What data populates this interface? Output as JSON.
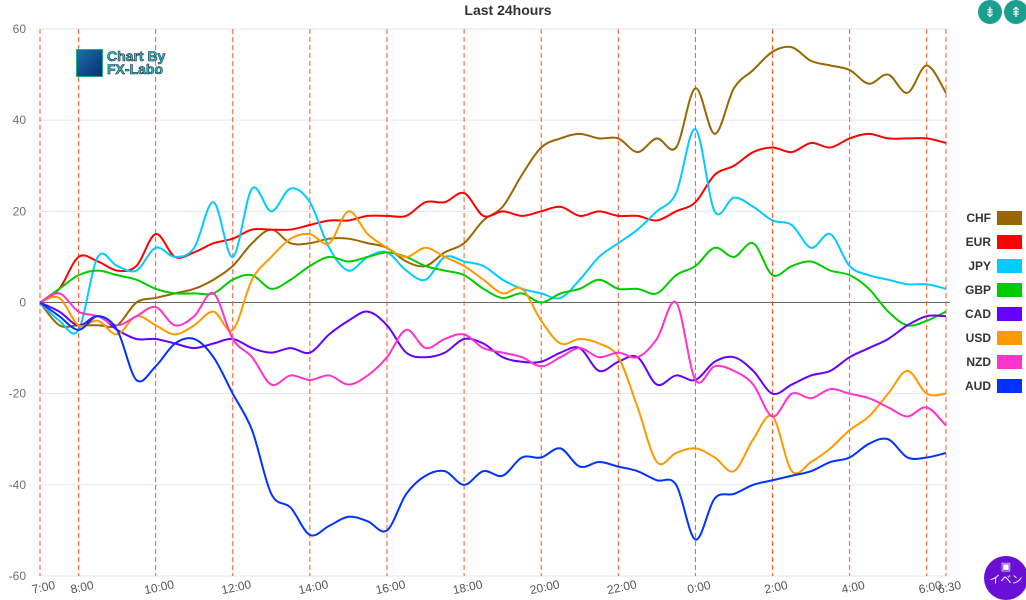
{
  "chart_data": {
    "type": "line",
    "title": "Last 24hours",
    "xlabel": "",
    "ylabel": "",
    "ylim": [
      -60,
      60
    ],
    "yticks": [
      60,
      40,
      20,
      0,
      -20,
      -40,
      -60
    ],
    "x_hours_from_start": [
      0,
      0.5,
      1,
      1.5,
      2,
      2.5,
      3,
      3.5,
      4,
      4.5,
      5,
      5.5,
      6,
      6.5,
      7,
      7.5,
      8,
      8.5,
      9,
      9.5,
      10,
      10.5,
      11,
      11.5,
      12,
      12.5,
      13,
      13.5,
      14,
      14.5,
      15,
      15.5,
      16,
      16.5,
      17,
      17.5,
      18,
      18.5,
      19,
      19.5,
      20,
      20.5,
      21,
      21.5,
      22,
      22.5,
      23,
      23.5
    ],
    "xticks": [
      {
        "label": "7:00",
        "h": 0
      },
      {
        "label": "8:00",
        "h": 1
      },
      {
        "label": "10:00",
        "h": 3
      },
      {
        "label": "12:00",
        "h": 5
      },
      {
        "label": "14:00",
        "h": 7
      },
      {
        "label": "16:00",
        "h": 9
      },
      {
        "label": "18:00",
        "h": 11
      },
      {
        "label": "20:00",
        "h": 13
      },
      {
        "label": "22:00",
        "h": 15
      },
      {
        "label": "0:00",
        "h": 17
      },
      {
        "label": "2:00",
        "h": 19
      },
      {
        "label": "4:00",
        "h": 21
      },
      {
        "label": "6:00",
        "h": 23
      },
      {
        "label": "6:30",
        "h": 23.5
      }
    ],
    "grid": true,
    "legend_position": "right",
    "series": [
      {
        "name": "CHF",
        "color": "#996600",
        "values": [
          0,
          -5,
          -5,
          -5,
          -5,
          0,
          1,
          2,
          3,
          5,
          8,
          13,
          16,
          13,
          13,
          14,
          14,
          13,
          12,
          9,
          8,
          11,
          13,
          18,
          21,
          28,
          34,
          36,
          37,
          36,
          36,
          33,
          36,
          34,
          47,
          37,
          47,
          51,
          55,
          56,
          53,
          52,
          51,
          48,
          50,
          46,
          52,
          46
        ]
      },
      {
        "name": "EUR",
        "color": "#ff0000",
        "values": [
          0,
          3,
          10,
          9,
          7,
          8,
          15,
          10,
          11,
          13,
          14,
          16,
          16,
          16,
          17,
          18,
          18,
          19,
          19,
          19,
          22,
          22,
          24,
          19,
          20,
          19,
          20,
          21,
          19,
          20,
          19,
          19,
          18,
          20,
          22,
          28,
          30,
          33,
          34,
          33,
          35,
          34,
          36,
          37,
          36,
          36,
          36,
          35
        ]
      },
      {
        "name": "JPY",
        "color": "#00ccff",
        "values": [
          0,
          -4,
          -6,
          10,
          8,
          7,
          12,
          10,
          12,
          22,
          10,
          25,
          20,
          25,
          22,
          12,
          7,
          10,
          11,
          7,
          5,
          10,
          9,
          8,
          5,
          3,
          2,
          1,
          5,
          10,
          13,
          16,
          20,
          24,
          38,
          20,
          23,
          21,
          18,
          17,
          12,
          15,
          8,
          6,
          5,
          4,
          4,
          3
        ]
      },
      {
        "name": "GBP",
        "color": "#00cc00",
        "values": [
          0,
          3,
          6,
          7,
          6,
          5,
          3,
          2,
          2,
          2,
          5,
          6,
          3,
          5,
          8,
          10,
          9,
          10,
          11,
          10,
          8,
          7,
          6,
          3,
          1,
          2,
          0,
          2,
          3,
          5,
          3,
          3,
          2,
          6,
          8,
          12,
          10,
          13,
          6,
          8,
          9,
          7,
          6,
          3,
          -2,
          -5,
          -4,
          -2
        ]
      },
      {
        "name": "CAD",
        "color": "#6600ff",
        "values": [
          0,
          -2,
          -5,
          -3,
          -6,
          -8,
          -8,
          -9,
          -10,
          -9,
          -8,
          -10,
          -11,
          -10,
          -11,
          -7,
          -4,
          -2,
          -5,
          -11,
          -12,
          -11,
          -8,
          -9,
          -12,
          -13,
          -13,
          -11,
          -10,
          -15,
          -13,
          -12,
          -18,
          -16,
          -17,
          -13,
          -12,
          -15,
          -20,
          -18,
          -16,
          -15,
          -12,
          -10,
          -8,
          -5,
          -3,
          -3
        ]
      },
      {
        "name": "USD",
        "color": "#ff9900",
        "values": [
          0,
          1,
          -5,
          -4,
          -7,
          -3,
          -5,
          -7,
          -5,
          -2,
          -6,
          5,
          10,
          14,
          15,
          13,
          20,
          15,
          12,
          10,
          12,
          10,
          8,
          5,
          2,
          3,
          -4,
          -9,
          -8,
          -9,
          -12,
          -23,
          -35,
          -33,
          -32,
          -34,
          -37,
          -30,
          -25,
          -37,
          -35,
          -32,
          -28,
          -25,
          -20,
          -15,
          -20,
          -20
        ]
      },
      {
        "name": "NZD",
        "color": "#ff33cc",
        "values": [
          0,
          2,
          -2,
          -3,
          -5,
          -3,
          -1,
          -5,
          -3,
          2,
          -8,
          -12,
          -18,
          -16,
          -17,
          -16,
          -18,
          -16,
          -12,
          -6,
          -10,
          -8,
          -7,
          -10,
          -11,
          -12,
          -14,
          -12,
          -10,
          -12,
          -11,
          -12,
          -8,
          0,
          -17,
          -14,
          -15,
          -18,
          -25,
          -20,
          -21,
          -19,
          -20,
          -21,
          -23,
          -25,
          -23,
          -27
        ]
      },
      {
        "name": "AUD",
        "color": "#0033ff",
        "values": [
          0,
          -3,
          -6,
          -3,
          -6,
          -17,
          -14,
          -9,
          -8,
          -12,
          -20,
          -28,
          -42,
          -45,
          -51,
          -49,
          -47,
          -48,
          -50,
          -42,
          -38,
          -37,
          -40,
          -37,
          -38,
          -34,
          -34,
          -32,
          -36,
          -35,
          -36,
          -37,
          -39,
          -40,
          -52,
          -43,
          -42,
          -40,
          -39,
          -38,
          -37,
          -35,
          -34,
          -31,
          -30,
          -34,
          -34,
          -33
        ]
      }
    ]
  },
  "logo": {
    "line1": "Chart By",
    "line2": "FX-Labo"
  },
  "toolbar": {
    "compress_icon": "⇟",
    "expand_icon": "⇞"
  },
  "event_button": {
    "label": "イベン"
  }
}
